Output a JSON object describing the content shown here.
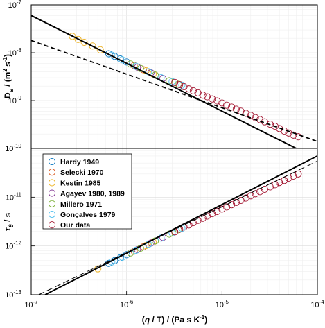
{
  "chart_data": [
    {
      "type": "scatter",
      "panel": "top",
      "ylabel_main": "D",
      "ylabel_sub": "s",
      "ylabel_rest": " / (m",
      "ylabel_sup": "2",
      "ylabel_tail": " s",
      "ylabel_sup2": "-1",
      "ylabel_end": ")",
      "x_scale": "log",
      "y_scale": "log",
      "xlim": [
        1e-07,
        0.0001
      ],
      "ylim": [
        1e-10,
        1e-07
      ],
      "y_ticks": [
        {
          "base": "10",
          "exp": "-10",
          "v": 1e-10
        },
        {
          "base": "10",
          "exp": "-9",
          "v": 1e-09
        },
        {
          "base": "10",
          "exp": "-8",
          "v": 1e-08
        },
        {
          "base": "10",
          "exp": "-7",
          "v": 1e-07
        }
      ],
      "grid": true,
      "lines": [
        {
          "style": "solid",
          "points": [
            [
              1e-07,
              6e-08
            ],
            [
              6e-05,
              1e-10
            ]
          ]
        },
        {
          "style": "dashed",
          "points": [
            [
              1e-07,
              1.8e-08
            ],
            [
              0.0001,
              1.4e-10
            ]
          ]
        }
      ],
      "series": [
        {
          "name": "Hardy 1949",
          "color": "#0072BD",
          "points": [
            [
              6.5e-07,
              9.5e-09
            ],
            [
              7.5e-07,
              8.4e-09
            ],
            [
              8.6e-07,
              7.4e-09
            ],
            [
              1e-06,
              6.4e-09
            ]
          ]
        },
        {
          "name": "Selecki 1970",
          "color": "#D95319",
          "points": [
            [
              1.2e-06,
              5.4e-09
            ],
            [
              1.5e-06,
              4.4e-09
            ]
          ]
        },
        {
          "name": "Kestin 1985",
          "color": "#EDB120",
          "points": [
            [
              2.7e-07,
              2.2e-08
            ],
            [
              3.1e-07,
              1.9e-08
            ],
            [
              3.6e-07,
              1.65e-08
            ],
            [
              4.4e-07,
              1.38e-08
            ],
            [
              5.3e-07,
              1.15e-08
            ],
            [
              1.6e-06,
              4.2e-09
            ],
            [
              1.9e-06,
              3.6e-09
            ]
          ]
        },
        {
          "name": "Agayev 1980, 1989",
          "color": "#7E2F8E",
          "points": [
            [
              1.3e-06,
              5e-09
            ],
            [
              1.8e-06,
              3.8e-09
            ],
            [
              2.4e-06,
              2.9e-09
            ]
          ]
        },
        {
          "name": "Millero 1971",
          "color": "#77AC30",
          "points": [
            [
              1.1e-06,
              5.8e-09
            ],
            [
              1.4e-06,
              4.7e-09
            ],
            [
              2e-06,
              3.4e-09
            ],
            [
              2.8e-06,
              2.6e-09
            ],
            [
              3.5e-06,
              2.2e-09
            ]
          ]
        },
        {
          "name": "Gonçalves 1979",
          "color": "#4DBEEE",
          "points": [
            [
              7e-07,
              8.9e-09
            ],
            [
              9e-07,
              7.1e-09
            ],
            [
              1.25e-06,
              5.2e-09
            ],
            [
              1.7e-06,
              4e-09
            ],
            [
              2.3e-06,
              3e-09
            ],
            [
              3e-06,
              2.5e-09
            ],
            [
              3.8e-06,
              2.1e-09
            ]
          ]
        },
        {
          "name": "Our data",
          "color": "#A2142F",
          "points": [
            [
              3.2e-06,
              2.4e-09
            ],
            [
              3.6e-06,
              2.15e-09
            ],
            [
              4e-06,
              1.95e-09
            ],
            [
              4.5e-06,
              1.75e-09
            ],
            [
              5e-06,
              1.6e-09
            ],
            [
              5.6e-06,
              1.45e-09
            ],
            [
              6.3e-06,
              1.3e-09
            ],
            [
              7e-06,
              1.2e-09
            ],
            [
              7.9e-06,
              1.08e-09
            ],
            [
              8.9e-06,
              9.8e-10
            ],
            [
              1e-05,
              8.9e-10
            ],
            [
              1.12e-05,
              8e-10
            ],
            [
              1.26e-05,
              7.3e-10
            ],
            [
              1.41e-05,
              6.6e-10
            ],
            [
              1.58e-05,
              6e-10
            ],
            [
              1.78e-05,
              5.4e-10
            ],
            [
              2e-05,
              4.9e-10
            ],
            [
              2.24e-05,
              4.4e-10
            ],
            [
              2.5e-05,
              4e-10
            ],
            [
              2.8e-05,
              3.6e-10
            ],
            [
              3.2e-05,
              3.2e-10
            ],
            [
              3.6e-05,
              2.9e-10
            ],
            [
              4e-05,
              2.6e-10
            ],
            [
              4.5e-05,
              2.3e-10
            ],
            [
              5e-05,
              2.1e-10
            ],
            [
              5.6e-05,
              1.9e-10
            ],
            [
              6.3e-05,
              1.75e-10
            ]
          ]
        }
      ]
    },
    {
      "type": "scatter",
      "panel": "bottom",
      "ylabel_main": "τ",
      "ylabel_sub": "θ",
      "ylabel_rest": " / s",
      "xlabel_pre": "(",
      "xlabel_eta": "η",
      "xlabel_mid": " / T) / (Pa s K",
      "xlabel_sup": "-1",
      "xlabel_end": ")",
      "x_scale": "log",
      "y_scale": "log",
      "xlim": [
        1e-07,
        0.0001
      ],
      "ylim": [
        1e-13,
        1e-10
      ],
      "x_ticks": [
        {
          "base": "10",
          "exp": "-7",
          "v": 1e-07
        },
        {
          "base": "10",
          "exp": "-6",
          "v": 1e-06
        },
        {
          "base": "10",
          "exp": "-5",
          "v": 1e-05
        },
        {
          "base": "10",
          "exp": "-4",
          "v": 0.0001
        }
      ],
      "y_ticks": [
        {
          "base": "10",
          "exp": "-13",
          "v": 1e-13
        },
        {
          "base": "10",
          "exp": "-12",
          "v": 1e-12
        },
        {
          "base": "10",
          "exp": "-11",
          "v": 1e-11
        }
      ],
      "grid": true,
      "legend_position": "top-left",
      "lines": [
        {
          "style": "solid",
          "points": [
            [
              1.4e-07,
              1e-13
            ],
            [
              0.0001,
              7e-11
            ]
          ]
        },
        {
          "style": "dashed",
          "points": [
            [
              1.2e-07,
              1e-13
            ],
            [
              0.0001,
              5.5e-11
            ]
          ]
        }
      ],
      "series": [
        {
          "name": "Hardy 1949",
          "color": "#0072BD",
          "points": [
            [
              6.5e-07,
              4.4e-13
            ],
            [
              7.5e-07,
              5e-13
            ],
            [
              8.6e-07,
              5.7e-13
            ],
            [
              1e-06,
              6.6e-13
            ]
          ]
        },
        {
          "name": "Selecki 1970",
          "color": "#D95319",
          "points": [
            [
              1.2e-06,
              7.8e-13
            ],
            [
              1.5e-06,
              9.6e-13
            ]
          ]
        },
        {
          "name": "Kestin 1985",
          "color": "#EDB120",
          "points": [
            [
              5e-07,
              3.4e-13
            ],
            [
              1.6e-06,
              1.02e-12
            ],
            [
              1.9e-06,
              1.2e-12
            ]
          ]
        },
        {
          "name": "Agayev 1980, 1989",
          "color": "#7E2F8E",
          "points": [
            [
              1.3e-06,
              8.4e-13
            ],
            [
              1.8e-06,
              1.15e-12
            ],
            [
              2.4e-06,
              1.5e-12
            ]
          ]
        },
        {
          "name": "Millero 1971",
          "color": "#77AC30",
          "points": [
            [
              1.1e-06,
              7.2e-13
            ],
            [
              1.4e-06,
              9e-13
            ],
            [
              2e-06,
              1.27e-12
            ],
            [
              2.8e-06,
              1.75e-12
            ],
            [
              3.5e-06,
              2.15e-12
            ]
          ]
        },
        {
          "name": "Gonçalves 1979",
          "color": "#4DBEEE",
          "points": [
            [
              7e-07,
              4.7e-13
            ],
            [
              9e-07,
              5.9e-13
            ],
            [
              1.25e-06,
              8.1e-13
            ],
            [
              1.7e-06,
              1.08e-12
            ],
            [
              2.3e-06,
              1.45e-12
            ],
            [
              3e-06,
              1.85e-12
            ],
            [
              3.8e-06,
              2.3e-12
            ]
          ]
        },
        {
          "name": "Our data",
          "color": "#A2142F",
          "points": [
            [
              3.2e-06,
              1.95e-12
            ],
            [
              3.6e-06,
              2.2e-12
            ],
            [
              4e-06,
              2.45e-12
            ],
            [
              4.5e-06,
              2.7e-12
            ],
            [
              5e-06,
              3e-12
            ],
            [
              5.6e-06,
              3.35e-12
            ],
            [
              6.3e-06,
              3.7e-12
            ],
            [
              7e-06,
              4.1e-12
            ],
            [
              7.9e-06,
              4.6e-12
            ],
            [
              8.9e-06,
              5.1e-12
            ],
            [
              1e-05,
              5.7e-12
            ],
            [
              1.12e-05,
              6.3e-12
            ],
            [
              1.26e-05,
              7e-12
            ],
            [
              1.41e-05,
              7.8e-12
            ],
            [
              1.58e-05,
              8.6e-12
            ],
            [
              1.78e-05,
              9.6e-12
            ],
            [
              2e-05,
              1.07e-11
            ],
            [
              2.24e-05,
              1.18e-11
            ],
            [
              2.5e-05,
              1.3e-11
            ],
            [
              2.8e-05,
              1.45e-11
            ],
            [
              3.2e-05,
              1.62e-11
            ],
            [
              3.6e-05,
              1.8e-11
            ],
            [
              4e-05,
              2e-11
            ],
            [
              4.5e-05,
              2.2e-11
            ],
            [
              5e-05,
              2.45e-11
            ],
            [
              5.6e-05,
              2.7e-11
            ],
            [
              6.3e-05,
              3e-11
            ]
          ]
        }
      ]
    }
  ]
}
